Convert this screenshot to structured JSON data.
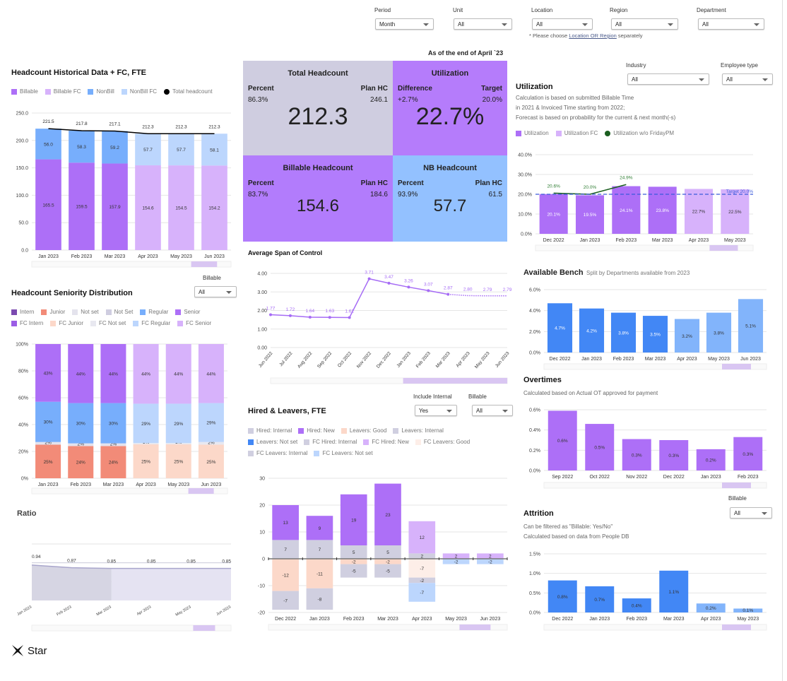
{
  "filters": {
    "period": {
      "label": "Period",
      "value": "Month"
    },
    "unit": {
      "label": "Unit",
      "value": "All"
    },
    "location": {
      "label": "Location",
      "value": "All"
    },
    "region": {
      "label": "Region",
      "value": "All"
    },
    "department": {
      "label": "Department",
      "value": "All"
    },
    "note_prefix": "* Please choose ",
    "note_link1": "Location OR Region",
    "note_suffix": " separately"
  },
  "as_of": "As of the end of April `23",
  "kpis": {
    "total": {
      "title": "Total Headcount",
      "left_label": "Percent",
      "left_value": "86.3%",
      "right_label": "Plan HC",
      "right_value": "246.1",
      "value": "212.3",
      "color": "#cfcde0"
    },
    "utilization": {
      "title": "Utilization",
      "left_label": "Difference",
      "left_value": "+2.7%",
      "right_label": "Target",
      "right_value": "20.0%",
      "value": "22.7%",
      "color": "#b57cfb"
    },
    "billable": {
      "title": "Billable Headcount",
      "left_label": "Percent",
      "left_value": "83.7%",
      "right_label": "Plan HC",
      "right_value": "184.6",
      "value": "154.6",
      "color": "#b27cfc"
    },
    "nb": {
      "title": "NB Headcount",
      "left_label": "Percent",
      "left_value": "93.9%",
      "right_label": "Plan HC",
      "right_value": "61.5",
      "value": "57.7",
      "color": "#93c1ff"
    }
  },
  "headcount_section": {
    "title": "Headcount Historical Data + FC, FTE",
    "billable_filter": {
      "label": "Billable",
      "value": "All"
    }
  },
  "seniority_section": {
    "title": "Headcount Seniority Distribution"
  },
  "ratio_section": {
    "title": "Ratio"
  },
  "span_section": {
    "title": "Average Span of Control"
  },
  "hired_section": {
    "title": "Hired & Leavers, FTE",
    "include_internal": {
      "label": "Include Internal",
      "value": "Yes"
    },
    "billable": {
      "label": "Billable",
      "value": "All"
    }
  },
  "utilization_section": {
    "title": "Utilization",
    "industry": {
      "label": "Industry",
      "value": "All"
    },
    "employee_type": {
      "label": "Employee type",
      "value": "All"
    },
    "desc": [
      "Calculation is based on submitted Billable Time",
      "in 2021 & Invoiced Time starting from 2022;",
      "Forecast is based on probability for the current & next month(-s)"
    ]
  },
  "bench_section": {
    "title": "Available Bench",
    "subtitle": "Split by Departments available from 2023"
  },
  "overtimes_section": {
    "title": "Overtimes",
    "desc": "Calculated based on Actual OT approved for payment"
  },
  "attrition_section": {
    "title": "Attrition",
    "billable": {
      "label": "Billable",
      "value": "All"
    },
    "desc": [
      "Can be filtered as \"Billable: Yes/No\"",
      "Calculated based on data from People DB"
    ]
  },
  "logo": {
    "text": "Star"
  },
  "chart_data": [
    {
      "id": "headcount",
      "type": "bar",
      "stacked": true,
      "categories": [
        "Jan 2023",
        "Feb 2023",
        "Mar 2023",
        "Apr 2023",
        "May 2023",
        "Jun 2023"
      ],
      "ylim": [
        0,
        250
      ],
      "yticks": [
        0,
        50,
        100,
        150,
        200,
        250
      ],
      "grid": true,
      "legend": "top-left",
      "series": [
        {
          "name": "Billable",
          "color": "#ad6ff7",
          "values": [
            165.5,
            159.5,
            157.9,
            null,
            null,
            null
          ]
        },
        {
          "name": "Billable FC",
          "color": "#d7b2fb",
          "values": [
            null,
            null,
            null,
            154.6,
            154.5,
            154.2
          ]
        },
        {
          "name": "NonBill",
          "color": "#77aefc",
          "values": [
            56.0,
            58.3,
            59.2,
            null,
            null,
            null
          ]
        },
        {
          "name": "NonBill FC",
          "color": "#bcd6fd",
          "values": [
            null,
            null,
            null,
            57.7,
            57.7,
            58.1
          ]
        },
        {
          "name": "Total headcount",
          "type": "line",
          "color": "#000000",
          "values": [
            221.5,
            217.8,
            217.1,
            212.3,
            212.3,
            212.3
          ]
        }
      ]
    },
    {
      "id": "seniority",
      "type": "bar",
      "stacked": true,
      "percent": true,
      "categories": [
        "Jan 2023",
        "Feb 2023",
        "Mar 2023",
        "Apr 2023",
        "May 2023",
        "Jun 2023"
      ],
      "ylim": [
        0,
        100
      ],
      "yticks": [
        0,
        20,
        40,
        60,
        80,
        100
      ],
      "grid": true,
      "legend": "top-left",
      "series": [
        {
          "name": "Intern",
          "color": "#7b4ab0",
          "values": [
            0,
            0,
            0,
            null,
            null,
            null
          ]
        },
        {
          "name": "Junior",
          "color": "#f28b78",
          "values": [
            25,
            24,
            24,
            null,
            null,
            null
          ]
        },
        {
          "name": "Not set",
          "color": "#e4e3ed",
          "values": [
            2,
            2,
            2,
            null,
            null,
            null
          ]
        },
        {
          "name": "Not Set",
          "color": "#cfcde0",
          "values": [
            null,
            null,
            null,
            null,
            null,
            null
          ]
        },
        {
          "name": "Regular",
          "color": "#77aefc",
          "values": [
            30,
            30,
            30,
            null,
            null,
            null
          ]
        },
        {
          "name": "Senior",
          "color": "#ad6ff7",
          "values": [
            43,
            44,
            44,
            null,
            null,
            null
          ]
        },
        {
          "name": "FC Intern",
          "color": "#9b5de5",
          "values": [
            null,
            null,
            null,
            0,
            0,
            0
          ]
        },
        {
          "name": "FC Junior",
          "color": "#fcd8c9",
          "values": [
            null,
            null,
            null,
            25,
            25,
            25
          ]
        },
        {
          "name": "FC Not set",
          "color": "#e8e8f0",
          "values": [
            null,
            null,
            null,
            1,
            1,
            2
          ]
        },
        {
          "name": "FC Regular",
          "color": "#bcd6fd",
          "values": [
            null,
            null,
            null,
            29,
            29,
            29
          ]
        },
        {
          "name": "FC Senior",
          "color": "#d7b2fb",
          "values": [
            null,
            null,
            null,
            44,
            44,
            44
          ]
        }
      ]
    },
    {
      "id": "ratio",
      "type": "area",
      "categories": [
        "Jan 2023",
        "Feb 2023",
        "Mar 2023",
        "Apr 2023",
        "May 2023",
        "Jun 2023"
      ],
      "ylim": [
        0,
        1.5
      ],
      "grid": true,
      "series": [
        {
          "values": [
            0.94,
            0.87,
            0.85,
            0.85,
            0.85,
            0.85
          ],
          "color": "#a9a6cc"
        }
      ],
      "actual_until": "Mar 2023"
    },
    {
      "id": "span",
      "type": "line",
      "categories": [
        "Jun 2022",
        "Jul 2022",
        "Aug 2022",
        "Sep 2022",
        "Oct 2022",
        "Nov 2022",
        "Dec 2022",
        "Jan 2023",
        "Feb 2023",
        "Mar 2023",
        "Apr 2023",
        "May 2023",
        "Jun 2023"
      ],
      "ylim": [
        0,
        4
      ],
      "yticks": [
        0,
        1,
        2,
        3,
        4
      ],
      "grid": true,
      "series": [
        {
          "values": [
            1.77,
            1.72,
            1.64,
            1.63,
            1.62,
            3.71,
            3.47,
            3.26,
            3.07,
            2.87,
            2.8,
            2.79,
            2.79
          ],
          "color": "#a66cf5"
        }
      ],
      "forecast_from": "Mar 2023"
    },
    {
      "id": "hired",
      "type": "bar",
      "stacked": true,
      "categories": [
        "Dec 2022",
        "Jan 2023",
        "Feb 2023",
        "Mar 2023",
        "Apr 2023",
        "May 2023",
        "Jun 2023"
      ],
      "ylim": [
        -20,
        30
      ],
      "yticks": [
        -20,
        -10,
        0,
        10,
        20,
        30
      ],
      "grid": true,
      "legend": "top-left",
      "series": [
        {
          "name": "Hired: Internal",
          "color": "#d0cfe0",
          "values": [
            7,
            7,
            5,
            5,
            null,
            null,
            null
          ]
        },
        {
          "name": "Hired: New",
          "color": "#ad6ff7",
          "values": [
            13,
            9,
            19,
            23,
            null,
            null,
            null
          ]
        },
        {
          "name": "Leavers: Good",
          "color": "#fcd8c9",
          "values": [
            -12,
            -11,
            -2,
            -2,
            null,
            null,
            null
          ]
        },
        {
          "name": "Leavers: Internal",
          "color": "#d0cfe0",
          "values": [
            -7,
            -8,
            -5,
            -5,
            null,
            null,
            null
          ]
        },
        {
          "name": "Leavers: Not set",
          "color": "#4287f5",
          "values": [
            null,
            null,
            null,
            null,
            null,
            null,
            null
          ]
        },
        {
          "name": "FC Hired: Internal",
          "color": "#d0cfe0",
          "values": [
            null,
            null,
            null,
            null,
            2,
            null,
            null
          ]
        },
        {
          "name": "FC Hired: New",
          "color": "#d7b2fb",
          "values": [
            null,
            null,
            null,
            null,
            12,
            2,
            2
          ]
        },
        {
          "name": "FC Leavers: Good",
          "color": "#fdeee8",
          "values": [
            null,
            null,
            null,
            null,
            -7,
            null,
            null
          ]
        },
        {
          "name": "FC Leavers: Internal",
          "color": "#d0cfe0",
          "values": [
            null,
            null,
            null,
            null,
            -2,
            null,
            null
          ]
        },
        {
          "name": "FC Leavers: Not set",
          "color": "#bcd6fd",
          "values": [
            null,
            null,
            null,
            null,
            -7,
            -2,
            -2
          ]
        }
      ]
    },
    {
      "id": "utilization",
      "type": "bar",
      "categories": [
        "Dec 2022",
        "Jan 2023",
        "Feb 2023",
        "Mar 2023",
        "Apr 2023",
        "May 2023"
      ],
      "ylim": [
        0,
        40
      ],
      "yticks": [
        0,
        10,
        20,
        30,
        40
      ],
      "grid": true,
      "legend": "top-left",
      "target": {
        "value": 20.0,
        "label": "Target 20.0%",
        "color": "#3b5bdb"
      },
      "series": [
        {
          "name": "Utilization",
          "color": "#ad6ff7",
          "label_color": "#ffffff",
          "values": [
            20.1,
            19.5,
            24.1,
            23.8,
            null,
            null
          ]
        },
        {
          "name": "Utilization FC",
          "color": "#d7b2fb",
          "values": [
            null,
            null,
            null,
            null,
            22.7,
            22.5
          ]
        },
        {
          "name": "Utilization w/o FridayPM",
          "type": "line",
          "color": "#1b5e20",
          "label_color": "#2e7d32",
          "values": [
            20.6,
            20.0,
            24.9,
            null,
            null,
            null
          ]
        }
      ]
    },
    {
      "id": "bench",
      "type": "bar",
      "categories": [
        "Dec 2022",
        "Jan 2023",
        "Feb 2023",
        "Mar 2023",
        "Apr 2023",
        "May 2023",
        "Jun 2023"
      ],
      "ylim": [
        0,
        6
      ],
      "yticks": [
        0,
        2,
        4,
        6
      ],
      "grid": true,
      "series": [
        {
          "name": "Bench",
          "color": "#4287f5",
          "label_color": "#ffffff",
          "values": [
            4.7,
            4.2,
            3.8,
            3.5,
            null,
            null,
            null
          ]
        },
        {
          "name": "Bench FC",
          "color": "#82b4fb",
          "values": [
            null,
            null,
            null,
            null,
            3.2,
            3.8,
            5.1
          ]
        }
      ]
    },
    {
      "id": "overtimes",
      "type": "bar",
      "categories": [
        "Sep 2022",
        "Oct 2022",
        "Nov 2022",
        "Dec 2022",
        "Jan 2023",
        "Feb 2023"
      ],
      "ylim": [
        0,
        0.6
      ],
      "yticks": [
        0,
        0.2,
        0.4,
        0.6
      ],
      "grid": true,
      "series": [
        {
          "name": "Overtimes",
          "color": "#ad6ff7",
          "values": [
            0.59,
            0.46,
            0.31,
            0.3,
            0.21,
            0.33
          ]
        }
      ]
    },
    {
      "id": "attrition",
      "type": "bar",
      "categories": [
        "Dec 2022",
        "Jan 2023",
        "Feb 2023",
        "Mar 2023",
        "Apr 2023",
        "May 2023"
      ],
      "ylim": [
        0,
        1.5
      ],
      "yticks": [
        0,
        0.5,
        1.0,
        1.5
      ],
      "grid": true,
      "series": [
        {
          "name": "Attrition",
          "color": "#4287f5",
          "values": [
            0.82,
            0.67,
            0.36,
            1.07,
            null,
            null
          ]
        },
        {
          "name": "Attrition FC",
          "color": "#82b4fb",
          "values": [
            null,
            null,
            null,
            null,
            0.23,
            0.1
          ]
        }
      ]
    }
  ]
}
